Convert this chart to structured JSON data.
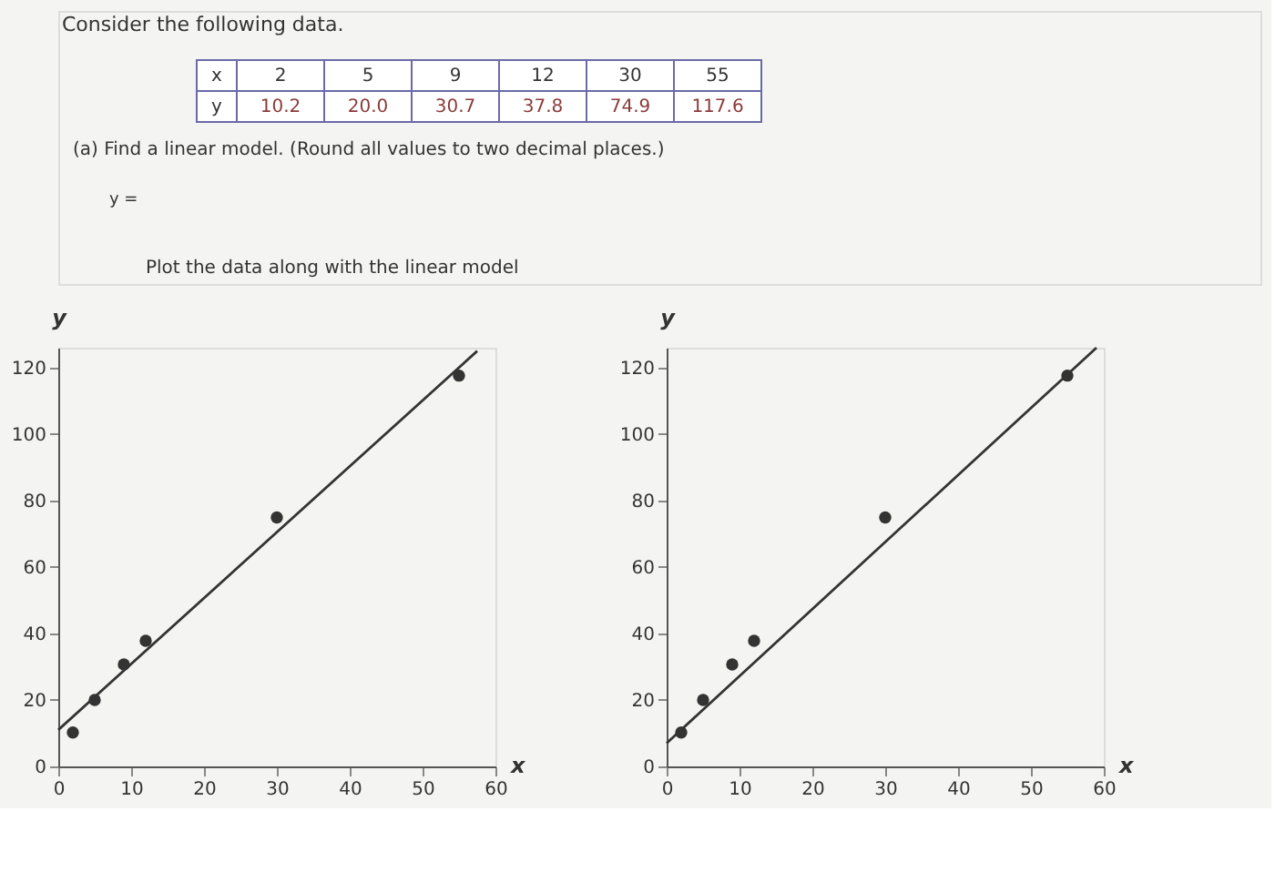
{
  "chart_data": [
    {
      "type": "other",
      "title": "Consider the following data.",
      "xlabel": "x",
      "ylabel": "y",
      "categories": [
        "2",
        "5",
        "9",
        "12",
        "30",
        "55"
      ],
      "value_labels": [
        "10.2",
        "20.0",
        "30.7",
        "37.8",
        "74.9",
        "117.6"
      ],
      "annotations": [
        "(a) Find a linear model. (Round all values to two decimal places.)",
        "y =",
        "Plot the data along with the linear model"
      ]
    },
    {
      "type": "scatter",
      "xlabel": "x",
      "ylabel": "y",
      "xlim": [
        0,
        60
      ],
      "ylim": [
        0,
        126
      ],
      "xticks": [
        0,
        10,
        20,
        30,
        40,
        50,
        60
      ],
      "yticks": [
        0,
        20,
        40,
        60,
        80,
        100,
        120
      ],
      "grid": false,
      "series": [
        {
          "type": "scatter",
          "marker": "circle",
          "x": [
            2,
            5,
            9,
            12,
            30,
            55
          ],
          "values": [
            10.2,
            20.0,
            30.7,
            37.8,
            74.9,
            117.6
          ],
          "color": "#333333"
        },
        {
          "type": "line",
          "x": [
            0,
            57.5
          ],
          "values": [
            11,
            125
          ],
          "color": "#333333"
        }
      ]
    },
    {
      "type": "scatter",
      "xlabel": "x",
      "ylabel": "y",
      "xlim": [
        0,
        60
      ],
      "ylim": [
        0,
        126
      ],
      "xticks": [
        0,
        10,
        20,
        30,
        40,
        50,
        60
      ],
      "yticks": [
        0,
        20,
        40,
        60,
        80,
        100,
        120
      ],
      "grid": false,
      "series": [
        {
          "type": "scatter",
          "marker": "circle",
          "x": [
            2,
            5,
            9,
            12,
            30,
            55
          ],
          "values": [
            10.2,
            20.0,
            30.7,
            37.8,
            74.9,
            117.6
          ],
          "color": "#333333"
        },
        {
          "type": "line",
          "x": [
            0,
            59
          ],
          "values": [
            7,
            126
          ],
          "color": "#333333"
        }
      ]
    }
  ]
}
